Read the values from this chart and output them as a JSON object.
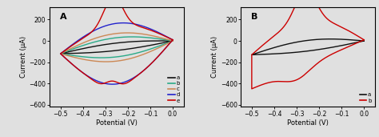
{
  "panel_A_label": "A",
  "panel_B_label": "B",
  "xlabel": "Potential (V)",
  "ylabel": "Current (μA)",
  "xlim": [
    -0.55,
    0.05
  ],
  "ylim": [
    -620,
    320
  ],
  "xticks": [
    -0.5,
    -0.4,
    -0.3,
    -0.2,
    -0.1,
    0.0
  ],
  "yticks": [
    -600,
    -400,
    -200,
    0,
    200
  ],
  "legend_A": [
    "a",
    "b",
    "c",
    "d",
    "e"
  ],
  "legend_B": [
    "a",
    "b"
  ],
  "colors_A": [
    "#111111",
    "#2aaa88",
    "#cc8855",
    "#2222cc",
    "#cc0000"
  ],
  "colors_B": [
    "#111111",
    "#cc0000"
  ],
  "bg_color": "#e0e0e0"
}
